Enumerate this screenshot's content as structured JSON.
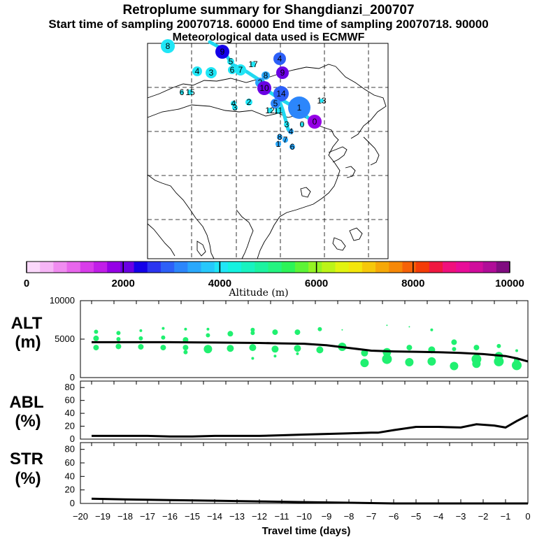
{
  "titles": {
    "line1": "Retroplume summary for Shangdianzi_200707",
    "line2": "Start time of sampling 20070718. 60000     End time of sampling 20070718. 90000",
    "line3": "Meteorological data used is ECMWF"
  },
  "colorbar": {
    "label": "Altitude (m)",
    "ticks": [
      "0",
      "2000",
      "4000",
      "6000",
      "8000",
      "10000"
    ],
    "colors": [
      "#fbd8fb",
      "#f6b5f6",
      "#f08cf0",
      "#e866ec",
      "#d83cea",
      "#c11ee8",
      "#9500e6",
      "#6a00e4",
      "#1400e8",
      "#2b35f0",
      "#2d60f8",
      "#2c86fb",
      "#2aa8fc",
      "#26c8fb",
      "#20e6f6",
      "#14f2e0",
      "#18f3c0",
      "#1cf3a0",
      "#24f480",
      "#2cf458",
      "#5cf436",
      "#94f424",
      "#bcf418",
      "#e2f410",
      "#f4e60c",
      "#f6c80a",
      "#f6a808",
      "#f68808",
      "#f66208",
      "#f43c08",
      "#f01840",
      "#f0107c",
      "#e80c98",
      "#d00c9c",
      "#b00c98",
      "#800c80"
    ]
  },
  "map": {
    "labels": [
      "8",
      "4",
      "3",
      "9",
      "6",
      "7",
      "5",
      "4",
      "17",
      "8",
      "9",
      "2",
      "14",
      "15",
      "4",
      "3",
      "2",
      "10",
      "12",
      "11",
      "1",
      "13",
      "0",
      "3",
      "8",
      "4",
      "6",
      "1",
      "7",
      "6",
      "0",
      "5"
    ]
  },
  "chart_data": [
    {
      "type": "scatter+line",
      "name": "ALT",
      "ylabel": "ALT (m)",
      "ylim": [
        0,
        10000
      ],
      "yticks": [
        "10000",
        "5000",
        "0"
      ],
      "xlim": [
        -20,
        0
      ],
      "line_x": [
        -19.5,
        -18,
        -16,
        -14,
        -12,
        -11,
        -10,
        -9,
        -8,
        -7,
        -6,
        -5,
        -4,
        -3,
        -2,
        -1,
        -0.5,
        0
      ],
      "line_y": [
        4600,
        4600,
        4600,
        4550,
        4500,
        4450,
        4400,
        4200,
        3850,
        3500,
        3400,
        3350,
        3300,
        3200,
        3050,
        2800,
        2500,
        2100
      ],
      "points": [
        {
          "x": -19.3,
          "y": 5950,
          "s": 3
        },
        {
          "x": -19.3,
          "y": 5100,
          "s": 4
        },
        {
          "x": -19.3,
          "y": 3900,
          "s": 4
        },
        {
          "x": -18.3,
          "y": 5800,
          "s": 3
        },
        {
          "x": -18.3,
          "y": 5000,
          "s": 3
        },
        {
          "x": -18.3,
          "y": 4050,
          "s": 4
        },
        {
          "x": -17.3,
          "y": 6100,
          "s": 2
        },
        {
          "x": -17.3,
          "y": 5100,
          "s": 3
        },
        {
          "x": -17.3,
          "y": 4000,
          "s": 4
        },
        {
          "x": -16.3,
          "y": 6400,
          "s": 2
        },
        {
          "x": -16.3,
          "y": 5200,
          "s": 3
        },
        {
          "x": -16.3,
          "y": 3900,
          "s": 4
        },
        {
          "x": -15.3,
          "y": 6300,
          "s": 2
        },
        {
          "x": -15.3,
          "y": 4900,
          "s": 4
        },
        {
          "x": -15.3,
          "y": 3900,
          "s": 4
        },
        {
          "x": -15.3,
          "y": 3300,
          "s": 3
        },
        {
          "x": -14.3,
          "y": 6300,
          "s": 2
        },
        {
          "x": -14.3,
          "y": 5500,
          "s": 3
        },
        {
          "x": -14.3,
          "y": 3700,
          "s": 6
        },
        {
          "x": -13.3,
          "y": 5700,
          "s": 4
        },
        {
          "x": -13.3,
          "y": 3800,
          "s": 5
        },
        {
          "x": -12.3,
          "y": 6200,
          "s": 3
        },
        {
          "x": -12.3,
          "y": 5800,
          "s": 3
        },
        {
          "x": -12.3,
          "y": 3900,
          "s": 5
        },
        {
          "x": -12.3,
          "y": 2500,
          "s": 2
        },
        {
          "x": -11.3,
          "y": 5900,
          "s": 4
        },
        {
          "x": -11.3,
          "y": 3700,
          "s": 5
        },
        {
          "x": -11.3,
          "y": 2800,
          "s": 2
        },
        {
          "x": -10.3,
          "y": 5900,
          "s": 4
        },
        {
          "x": -10.3,
          "y": 3800,
          "s": 5
        },
        {
          "x": -10.3,
          "y": 3100,
          "s": 2
        },
        {
          "x": -9.3,
          "y": 6300,
          "s": 3
        },
        {
          "x": -9.3,
          "y": 3600,
          "s": 5
        },
        {
          "x": -8.3,
          "y": 6200,
          "s": 1
        },
        {
          "x": -8.3,
          "y": 4000,
          "s": 6
        },
        {
          "x": -7.3,
          "y": 3200,
          "s": 5
        },
        {
          "x": -7.3,
          "y": 1900,
          "s": 6
        },
        {
          "x": -6.3,
          "y": 6800,
          "s": 1
        },
        {
          "x": -6.3,
          "y": 3300,
          "s": 6
        },
        {
          "x": -6.3,
          "y": 2400,
          "s": 7
        },
        {
          "x": -5.3,
          "y": 6600,
          "s": 1
        },
        {
          "x": -5.3,
          "y": 3900,
          "s": 4
        },
        {
          "x": -5.3,
          "y": 2000,
          "s": 6
        },
        {
          "x": -4.3,
          "y": 6200,
          "s": 2
        },
        {
          "x": -4.3,
          "y": 3600,
          "s": 5
        },
        {
          "x": -4.3,
          "y": 2100,
          "s": 6
        },
        {
          "x": -3.3,
          "y": 4600,
          "s": 4
        },
        {
          "x": -3.3,
          "y": 3700,
          "s": 3
        },
        {
          "x": -3.3,
          "y": 1500,
          "s": 6
        },
        {
          "x": -2.3,
          "y": 3900,
          "s": 4
        },
        {
          "x": -2.3,
          "y": 2400,
          "s": 7
        },
        {
          "x": -2.3,
          "y": 1800,
          "s": 6
        },
        {
          "x": -1.3,
          "y": 4100,
          "s": 3
        },
        {
          "x": -1.3,
          "y": 2800,
          "s": 6
        },
        {
          "x": -1.3,
          "y": 2100,
          "s": 7
        },
        {
          "x": -0.5,
          "y": 3500,
          "s": 2
        },
        {
          "x": -0.5,
          "y": 2300,
          "s": 4
        },
        {
          "x": -0.5,
          "y": 1600,
          "s": 7
        }
      ]
    },
    {
      "type": "line",
      "name": "ABL",
      "ylabel": "ABL (%)",
      "ylim": [
        0,
        90
      ],
      "yticks": [
        "80",
        "60",
        "40",
        "20",
        "0"
      ],
      "x": [
        -19.5,
        -18,
        -17,
        -16,
        -15,
        -14,
        -13,
        -12,
        -11,
        -10,
        -9,
        -8,
        -7,
        -6.7,
        -6,
        -5,
        -4,
        -3,
        -2.3,
        -1.5,
        -1,
        -0.5,
        0
      ],
      "y": [
        5,
        5,
        5,
        4,
        4,
        5,
        5,
        5,
        6,
        7,
        8,
        9,
        10,
        10,
        14,
        19,
        19,
        18,
        23,
        21,
        18,
        28,
        37
      ]
    },
    {
      "type": "line",
      "name": "STR",
      "ylabel": "STR (%)",
      "ylim": [
        0,
        90
      ],
      "yticks": [
        "80",
        "60",
        "40",
        "20",
        "0"
      ],
      "x": [
        -19.5,
        -18,
        -16,
        -14,
        -12,
        -10,
        -8,
        -6,
        -4,
        -2,
        0
      ],
      "y": [
        7,
        6,
        5,
        4,
        3,
        2,
        1,
        0,
        0,
        0,
        0
      ]
    }
  ],
  "xaxis": {
    "label": "Travel time (days)",
    "ticks": [
      "−20",
      "−19",
      "−18",
      "−17",
      "−16",
      "−15",
      "−14",
      "−13",
      "−12",
      "−11",
      "−10",
      "−9",
      "−8",
      "−7",
      "−6",
      "−5",
      "−4",
      "−3",
      "−2",
      "−1",
      "0"
    ]
  }
}
